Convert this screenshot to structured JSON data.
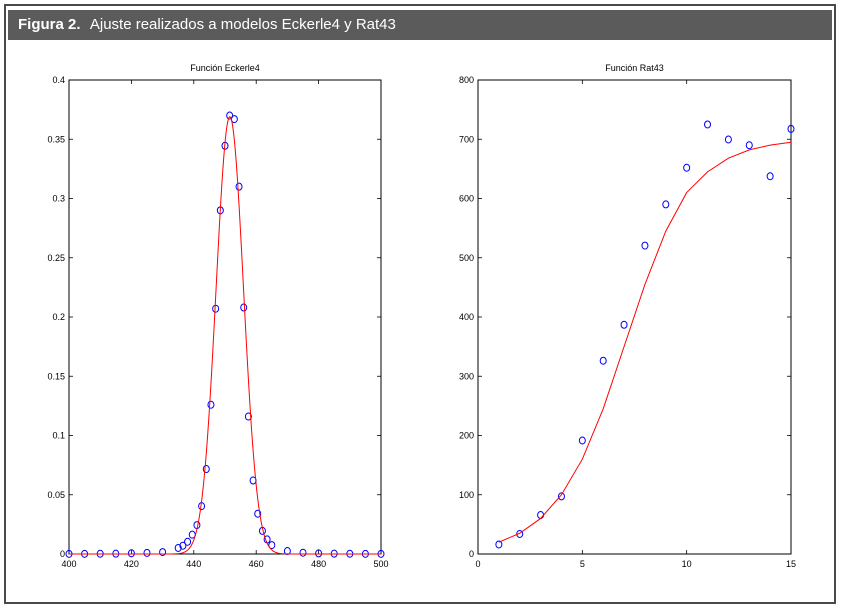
{
  "figure": {
    "label": "Figura 2.",
    "caption": "Ajuste realizados a modelos Eckerle4 y Rat43"
  },
  "colors": {
    "header_bg": "#5b5b5b",
    "fit_line": "#ff0000",
    "markers": "#0000ff"
  },
  "chart_data": [
    {
      "type": "scatter",
      "title": "Función Eckerle4",
      "xlabel": "",
      "ylabel": "",
      "xlim": [
        400,
        500
      ],
      "ylim": [
        0,
        0.4
      ],
      "xticks": [
        400,
        420,
        440,
        460,
        480,
        500
      ],
      "yticks": [
        0,
        0.05,
        0.1,
        0.15,
        0.2,
        0.25,
        0.3,
        0.35,
        0.4
      ],
      "xtick_labels": [
        "400",
        "420",
        "440",
        "460",
        "480",
        "500"
      ],
      "ytick_labels": [
        "0",
        "0.05",
        "0.1",
        "0.15",
        "0.2",
        "0.25",
        "0.3",
        "0.35",
        "0.4"
      ],
      "grid": false,
      "series": [
        {
          "kind": "markers",
          "marker": "circle",
          "x": [
            400,
            405,
            410,
            415,
            420,
            425,
            430,
            435,
            436.5,
            438,
            439.5,
            441,
            442.5,
            444,
            445.5,
            447,
            448.5,
            450,
            451.5,
            453,
            454.5,
            456,
            457.5,
            459,
            460.5,
            462,
            463.5,
            465,
            470,
            475,
            480,
            485,
            490,
            495,
            500
          ],
          "y": [
            0.0001,
            0.0001,
            0.0002,
            0.0003,
            0.0006,
            0.0009,
            0.0016,
            0.0051,
            0.007,
            0.0103,
            0.0163,
            0.0244,
            0.0404,
            0.0717,
            0.126,
            0.207,
            0.29,
            0.3445,
            0.37,
            0.367,
            0.31,
            0.208,
            0.116,
            0.062,
            0.034,
            0.0195,
            0.0123,
            0.0075,
            0.0025,
            0.0011,
            0.0005,
            0.0003,
            0.0002,
            0.0001,
            0.0001
          ]
        },
        {
          "kind": "line",
          "model": "gaussian",
          "params": {
            "amplitude": 0.369,
            "center": 451.54,
            "sigma": 4.4
          },
          "x_range": [
            400,
            500
          ]
        }
      ]
    },
    {
      "type": "scatter",
      "title": "Función Rat43",
      "xlabel": "",
      "ylabel": "",
      "xlim": [
        0,
        15
      ],
      "ylim": [
        0,
        800
      ],
      "xticks": [
        0,
        5,
        10,
        15
      ],
      "yticks": [
        0,
        100,
        200,
        300,
        400,
        500,
        600,
        700,
        800
      ],
      "xtick_labels": [
        "0",
        "5",
        "10",
        "15"
      ],
      "ytick_labels": [
        "0",
        "100",
        "200",
        "300",
        "400",
        "500",
        "600",
        "700",
        "800"
      ],
      "grid": false,
      "series": [
        {
          "kind": "markers",
          "marker": "circle",
          "x": [
            1,
            2,
            3,
            4,
            5,
            6,
            7,
            8,
            9,
            10,
            11,
            12,
            13,
            14,
            15
          ],
          "y": [
            16.08,
            33.83,
            65.8,
            97.2,
            191.55,
            326.2,
            386.87,
            520.53,
            590.03,
            651.92,
            724.93,
            699.56,
            689.96,
            637.56,
            717.41
          ]
        },
        {
          "kind": "line",
          "x": [
            1,
            2,
            3,
            4,
            5,
            6,
            7,
            8,
            9,
            10,
            11,
            12,
            13,
            14,
            15
          ],
          "y": [
            20,
            35,
            60,
            100,
            160,
            245,
            350,
            455,
            545,
            610,
            645,
            668,
            682,
            690,
            695
          ]
        }
      ]
    }
  ]
}
